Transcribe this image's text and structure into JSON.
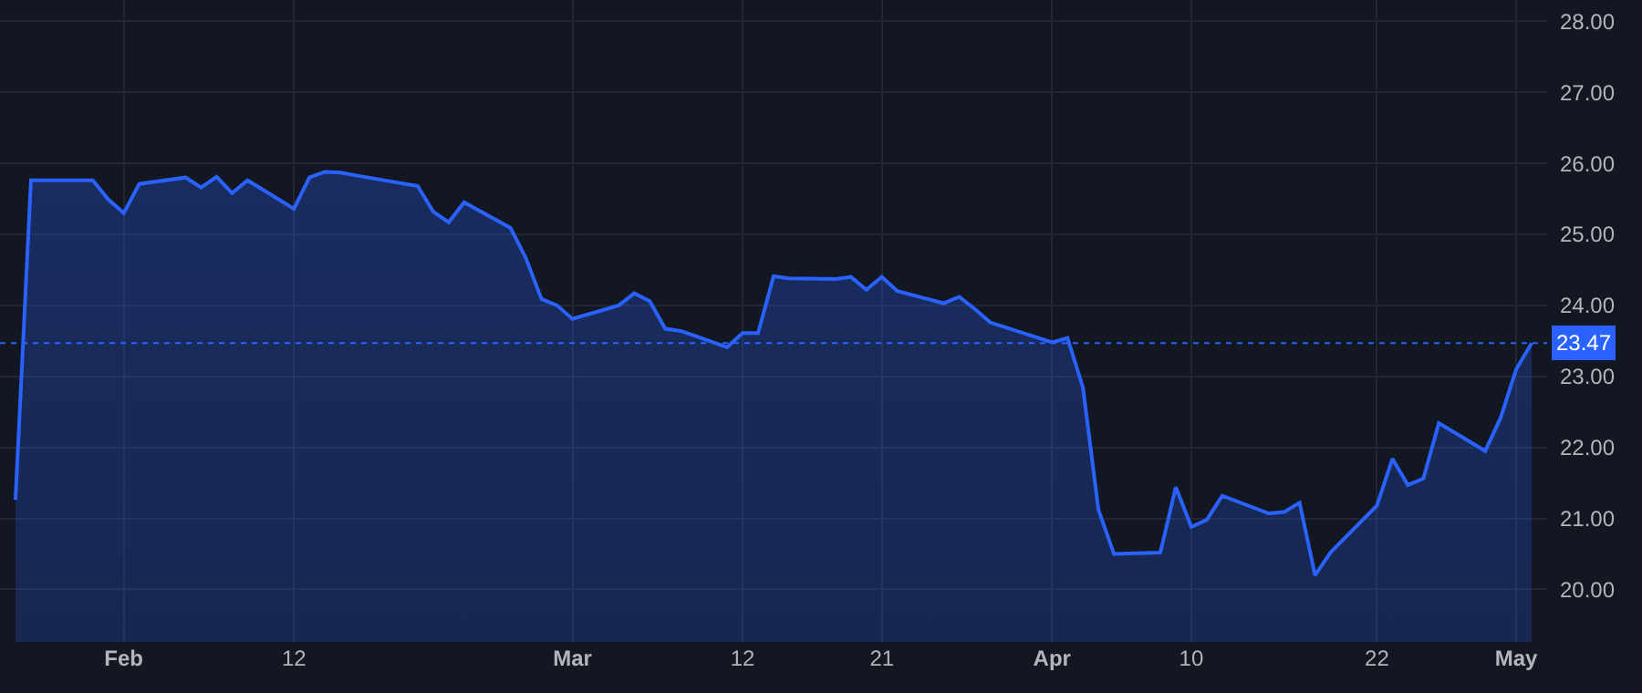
{
  "chart_data": {
    "type": "area",
    "x": [
      "--01-25",
      "--01-26",
      "--01-29",
      "--01-30",
      "--01-31",
      "--02-01",
      "--02-02",
      "--02-05",
      "--02-06",
      "--02-07",
      "--02-08",
      "--02-09",
      "--02-12",
      "--02-13",
      "--02-14",
      "--02-15",
      "--02-16",
      "--02-20",
      "--02-21",
      "--02-22",
      "--02-23",
      "--02-26",
      "--02-27",
      "--02-28",
      "--02-29",
      "--03-01",
      "--03-04",
      "--03-05",
      "--03-06",
      "--03-07",
      "--03-08",
      "--03-11",
      "--03-12",
      "--03-13",
      "--03-14",
      "--03-15",
      "--03-18",
      "--03-19",
      "--03-20",
      "--03-21",
      "--03-22",
      "--03-25",
      "--03-26",
      "--03-27",
      "--03-28",
      "--04-01",
      "--04-02",
      "--04-03",
      "--04-04",
      "--04-05",
      "--04-08",
      "--04-09",
      "--04-10",
      "--04-11",
      "--04-12",
      "--04-15",
      "--04-16",
      "--04-17",
      "--04-18",
      "--04-19",
      "--04-22",
      "--04-23",
      "--04-24",
      "--04-25",
      "--04-26",
      "--04-29",
      "--04-30",
      "--05-01",
      "--05-02"
    ],
    "series": [
      {
        "color": "#2962ff",
        "values": [
          21.26,
          25.76,
          25.76,
          25.76,
          25.49,
          25.3,
          25.71,
          25.8,
          25.66,
          25.81,
          25.58,
          25.76,
          25.36,
          25.8,
          25.88,
          25.87,
          25.83,
          25.68,
          25.32,
          25.17,
          25.45,
          25.09,
          24.66,
          24.09,
          24.0,
          23.81,
          24.0,
          24.17,
          24.06,
          23.67,
          23.64,
          23.41,
          23.61,
          23.61,
          24.41,
          24.38,
          24.37,
          24.4,
          24.22,
          24.4,
          24.2,
          24.03,
          24.12,
          23.95,
          23.76,
          23.48,
          23.54,
          22.84,
          21.12,
          20.5,
          20.52,
          21.44,
          20.88,
          20.98,
          21.32,
          21.07,
          21.09,
          21.22,
          20.2,
          20.52,
          21.18,
          21.84,
          21.47,
          21.56,
          22.34,
          21.95,
          22.42,
          23.1,
          23.47
        ]
      }
    ],
    "xlim": [
      "--01-24",
      "--05-03"
    ],
    "xticks": [
      {
        "value": "--02-01",
        "label": "Feb"
      },
      {
        "value": "--02-12",
        "label": "12"
      },
      {
        "value": "--03-01",
        "label": "Mar"
      },
      {
        "value": "--03-12",
        "label": "12"
      },
      {
        "value": "--03-21",
        "label": "21"
      },
      {
        "value": "--04-01",
        "label": "Apr"
      },
      {
        "value": "--04-10",
        "label": "10"
      },
      {
        "value": "--04-22",
        "label": "22"
      },
      {
        "value": "--05-01",
        "label": "May"
      }
    ],
    "ylim": [
      19.26,
      28.3
    ],
    "yticks": [
      {
        "value": 20,
        "label": "20.00"
      },
      {
        "value": 21,
        "label": "21.00"
      },
      {
        "value": 22,
        "label": "22.00"
      },
      {
        "value": 23,
        "label": "23.00"
      },
      {
        "value": 24,
        "label": "24.00"
      },
      {
        "value": 25,
        "label": "25.00"
      },
      {
        "value": 26,
        "label": "26.00"
      },
      {
        "value": 27,
        "label": "27.00"
      },
      {
        "value": 28,
        "label": "28.00"
      }
    ],
    "ref_lines": [
      {
        "axis": "y",
        "value": 23.47,
        "label": "23.47",
        "color": "#2962ff",
        "line_style": "dotted"
      }
    ],
    "grid": true,
    "marker": "none"
  }
}
